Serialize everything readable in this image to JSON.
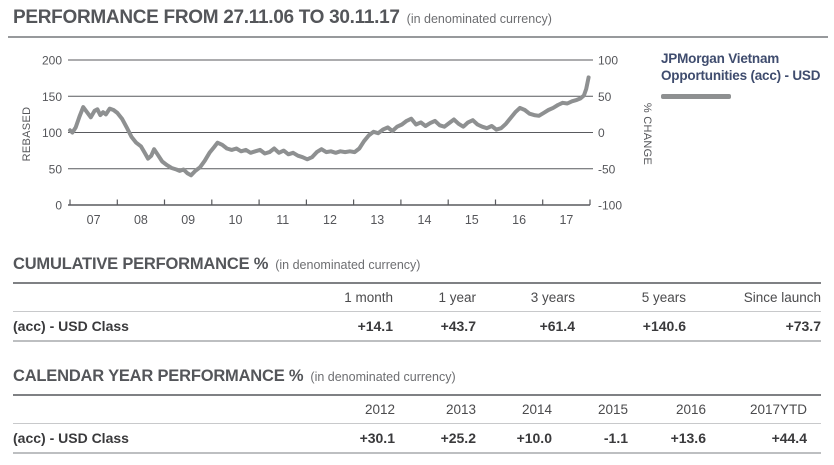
{
  "header": {
    "title": "PERFORMANCE FROM 27.11.06 TO 30.11.17",
    "subtitle": "(in denominated currency)"
  },
  "colors": {
    "series_line": "#8e9091",
    "legend_text": "#3f4c6e",
    "heading_text": "#54565a"
  },
  "chart_data": {
    "type": "line",
    "title": "PERFORMANCE FROM 27.11.06 TO 30.11.17 (in denominated currency)",
    "grid": true,
    "legend_position": "right",
    "left_axis": {
      "label": "REBASED",
      "range": [
        0,
        200
      ],
      "tick_labels": [
        "200",
        "150",
        "100",
        "50",
        "0"
      ]
    },
    "right_axis": {
      "label": "% CHANGE",
      "range": [
        -100,
        100
      ],
      "tick_labels": [
        "100",
        "50",
        "0",
        "-50",
        "-100"
      ]
    },
    "x_axis": {
      "labels": [
        "07",
        "08",
        "09",
        "10",
        "11",
        "12",
        "13",
        "14",
        "15",
        "16",
        "17"
      ]
    },
    "series": [
      {
        "name": "JPMorgan Vietnam Opportunities (acc) - USD",
        "color": "#8e9091",
        "units": "rebased (start = 100)",
        "points": [
          [
            0,
            103
          ],
          [
            0.05,
            100
          ],
          [
            0.12,
            107
          ],
          [
            0.2,
            122
          ],
          [
            0.28,
            135
          ],
          [
            0.36,
            128
          ],
          [
            0.44,
            121
          ],
          [
            0.52,
            130
          ],
          [
            0.58,
            132
          ],
          [
            0.64,
            124
          ],
          [
            0.7,
            128
          ],
          [
            0.76,
            125
          ],
          [
            0.84,
            133
          ],
          [
            0.92,
            131
          ],
          [
            1.0,
            127
          ],
          [
            1.1,
            119
          ],
          [
            1.2,
            107
          ],
          [
            1.3,
            94
          ],
          [
            1.4,
            86
          ],
          [
            1.5,
            81
          ],
          [
            1.58,
            72
          ],
          [
            1.65,
            64
          ],
          [
            1.72,
            68
          ],
          [
            1.78,
            77
          ],
          [
            1.85,
            70
          ],
          [
            1.95,
            60
          ],
          [
            2.05,
            55
          ],
          [
            2.15,
            51
          ],
          [
            2.25,
            49
          ],
          [
            2.32,
            47
          ],
          [
            2.4,
            49
          ],
          [
            2.48,
            44
          ],
          [
            2.56,
            41
          ],
          [
            2.65,
            47
          ],
          [
            2.75,
            52
          ],
          [
            2.85,
            61
          ],
          [
            2.95,
            72
          ],
          [
            3.05,
            80
          ],
          [
            3.12,
            86
          ],
          [
            3.22,
            83
          ],
          [
            3.32,
            78
          ],
          [
            3.42,
            76
          ],
          [
            3.52,
            78
          ],
          [
            3.62,
            74
          ],
          [
            3.72,
            76
          ],
          [
            3.82,
            72
          ],
          [
            3.92,
            74
          ],
          [
            4.02,
            76
          ],
          [
            4.12,
            71
          ],
          [
            4.22,
            73
          ],
          [
            4.32,
            78
          ],
          [
            4.42,
            72
          ],
          [
            4.52,
            75
          ],
          [
            4.62,
            70
          ],
          [
            4.72,
            72
          ],
          [
            4.82,
            68
          ],
          [
            4.92,
            66
          ],
          [
            5.02,
            63
          ],
          [
            5.12,
            66
          ],
          [
            5.22,
            73
          ],
          [
            5.32,
            77
          ],
          [
            5.42,
            73
          ],
          [
            5.52,
            74
          ],
          [
            5.62,
            72
          ],
          [
            5.72,
            74
          ],
          [
            5.82,
            73
          ],
          [
            5.92,
            74
          ],
          [
            6.02,
            73
          ],
          [
            6.12,
            78
          ],
          [
            6.22,
            88
          ],
          [
            6.32,
            96
          ],
          [
            6.42,
            101
          ],
          [
            6.52,
            99
          ],
          [
            6.62,
            104
          ],
          [
            6.72,
            107
          ],
          [
            6.82,
            102
          ],
          [
            6.92,
            108
          ],
          [
            7.02,
            111
          ],
          [
            7.12,
            116
          ],
          [
            7.22,
            119
          ],
          [
            7.32,
            111
          ],
          [
            7.42,
            114
          ],
          [
            7.52,
            109
          ],
          [
            7.62,
            113
          ],
          [
            7.72,
            116
          ],
          [
            7.82,
            110
          ],
          [
            7.92,
            108
          ],
          [
            8.02,
            113
          ],
          [
            8.12,
            118
          ],
          [
            8.22,
            112
          ],
          [
            8.32,
            108
          ],
          [
            8.42,
            114
          ],
          [
            8.52,
            117
          ],
          [
            8.62,
            111
          ],
          [
            8.72,
            108
          ],
          [
            8.82,
            106
          ],
          [
            8.92,
            109
          ],
          [
            9.02,
            104
          ],
          [
            9.12,
            106
          ],
          [
            9.22,
            112
          ],
          [
            9.32,
            120
          ],
          [
            9.42,
            128
          ],
          [
            9.52,
            134
          ],
          [
            9.62,
            131
          ],
          [
            9.72,
            126
          ],
          [
            9.82,
            124
          ],
          [
            9.92,
            123
          ],
          [
            10.02,
            127
          ],
          [
            10.12,
            131
          ],
          [
            10.22,
            134
          ],
          [
            10.32,
            138
          ],
          [
            10.42,
            141
          ],
          [
            10.52,
            140
          ],
          [
            10.62,
            143
          ],
          [
            10.72,
            145
          ],
          [
            10.8,
            147
          ],
          [
            10.87,
            151
          ],
          [
            10.92,
            160
          ],
          [
            10.97,
            176
          ]
        ]
      }
    ]
  },
  "cumulative": {
    "heading": "CUMULATIVE PERFORMANCE %",
    "subtitle": "(in denominated currency)",
    "columns": [
      "1 month",
      "1 year",
      "3 years",
      "5 years",
      "Since launch"
    ],
    "rows": [
      {
        "label": "(acc) - USD Class",
        "values": [
          "+14.1",
          "+43.7",
          "+61.4",
          "+140.6",
          "+73.7"
        ]
      }
    ]
  },
  "calendar": {
    "heading": "CALENDAR YEAR PERFORMANCE %",
    "subtitle": "(in denominated currency)",
    "columns": [
      "2012",
      "2013",
      "2014",
      "2015",
      "2016",
      "2017YTD"
    ],
    "rows": [
      {
        "label": "(acc) - USD Class",
        "values": [
          "+30.1",
          "+25.2",
          "+10.0",
          "-1.1",
          "+13.6",
          "+44.4"
        ]
      }
    ]
  }
}
